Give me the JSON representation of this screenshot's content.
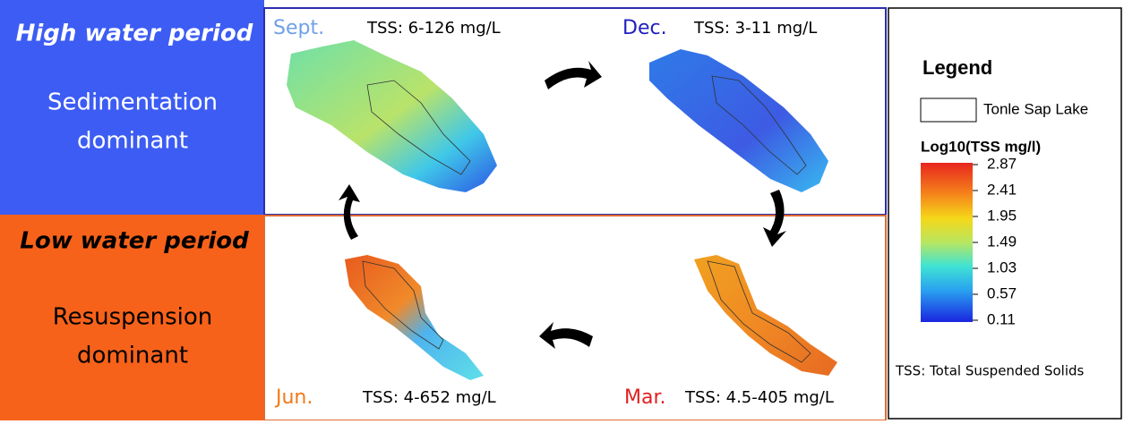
{
  "panels": {
    "high": {
      "title": "High water period",
      "lines": [
        "Sedimentation",
        "dominant"
      ]
    },
    "low": {
      "title": "Low water period",
      "lines": [
        "Resuspension",
        "dominant"
      ]
    }
  },
  "maps": [
    {
      "month": "Sept.",
      "tss": "TSS: 6-126 mg/L"
    },
    {
      "month": "Dec.",
      "tss": "TSS: 3-11 mg/L"
    },
    {
      "month": "Jun.",
      "tss": "TSS: 4-652 mg/L"
    },
    {
      "month": "Mar.",
      "tss": "TSS: 4.5-405 mg/L"
    }
  ],
  "legend": {
    "title": "Legend",
    "lake": "Tonle Sap Lake",
    "scale_title": "Log10(TSS mg/l)",
    "ticks": [
      2.87,
      2.41,
      1.95,
      1.49,
      1.03,
      0.57,
      0.11
    ],
    "footnote": "TSS: Total Suspended Solids"
  }
}
